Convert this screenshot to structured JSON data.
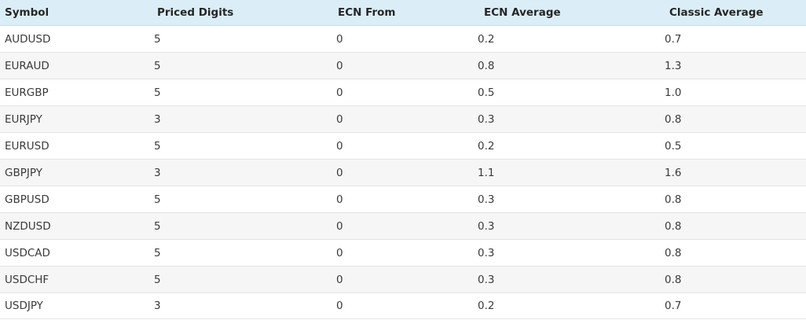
{
  "table": {
    "headers": [
      "Symbol",
      "Priced Digits",
      "ECN From",
      "ECN Average",
      "Classic Average"
    ],
    "rows": [
      [
        "AUDUSD",
        "5",
        "0",
        "0.2",
        "0.7"
      ],
      [
        "EURAUD",
        "5",
        "0",
        "0.8",
        "1.3"
      ],
      [
        "EURGBP",
        "5",
        "0",
        "0.5",
        "1.0"
      ],
      [
        "EURJPY",
        "3",
        "0",
        "0.3",
        "0.8"
      ],
      [
        "EURUSD",
        "5",
        "0",
        "0.2",
        "0.5"
      ],
      [
        "GBPJPY",
        "3",
        "0",
        "1.1",
        "1.6"
      ],
      [
        "GBPUSD",
        "5",
        "0",
        "0.3",
        "0.8"
      ],
      [
        "NZDUSD",
        "5",
        "0",
        "0.3",
        "0.8"
      ],
      [
        "USDCAD",
        "5",
        "0",
        "0.3",
        "0.8"
      ],
      [
        "USDCHF",
        "5",
        "0",
        "0.3",
        "0.8"
      ],
      [
        "USDJPY",
        "3",
        "0",
        "0.2",
        "0.7"
      ]
    ]
  },
  "colors": {
    "header_bg": "#dbeef7",
    "stripe_bg": "#f6f6f6",
    "row_border": "#e3e3e3"
  }
}
